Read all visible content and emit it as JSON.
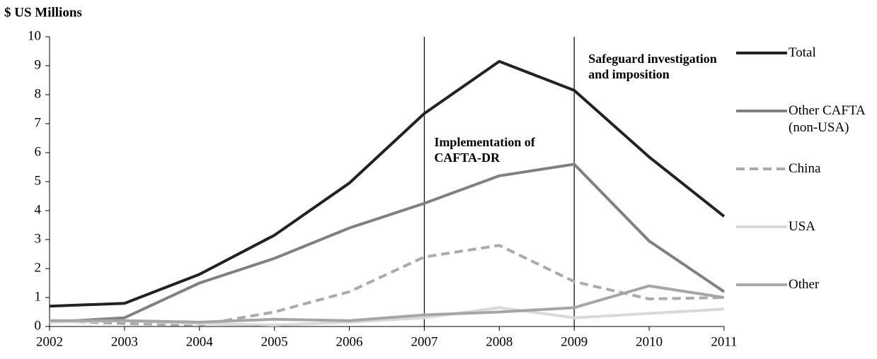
{
  "chart_data": {
    "type": "line",
    "y_label": "$ US Millions",
    "categories": [
      "2002",
      "2003",
      "2004",
      "2005",
      "2006",
      "2007",
      "2008",
      "2009",
      "2010",
      "2011"
    ],
    "ylim": [
      0,
      10
    ],
    "yticks": [
      0,
      1,
      2,
      3,
      4,
      5,
      6,
      7,
      8,
      9,
      10
    ],
    "series": [
      {
        "name": "Total",
        "color": "#222222",
        "values": [
          0.7,
          0.8,
          1.8,
          3.15,
          4.95,
          7.35,
          9.15,
          8.15,
          5.85,
          3.8
        ]
      },
      {
        "name": "Other CAFTA (non-USA)",
        "color": "#808080",
        "values": [
          0.15,
          0.3,
          1.5,
          2.35,
          3.4,
          4.25,
          5.2,
          5.6,
          2.95,
          1.2
        ]
      },
      {
        "name": "China",
        "color": "#aaaaaa",
        "dash": true,
        "values": [
          0.2,
          0.1,
          0.05,
          0.5,
          1.2,
          2.4,
          2.8,
          1.55,
          0.95,
          1.0
        ]
      },
      {
        "name": "USA",
        "color": "#d9d9d9",
        "values": [
          0.15,
          0.2,
          0.1,
          0.05,
          0.15,
          0.3,
          0.65,
          0.3,
          0.45,
          0.6
        ]
      },
      {
        "name": "Other",
        "color": "#a6a6a6",
        "values": [
          0.2,
          0.2,
          0.15,
          0.25,
          0.2,
          0.4,
          0.5,
          0.65,
          1.4,
          1.0
        ]
      }
    ],
    "annotations": [
      {
        "text": "Implementation of CAFTA-DR",
        "x": "2007"
      },
      {
        "text": "Safeguard investigation and imposition",
        "x": "2009"
      }
    ]
  }
}
